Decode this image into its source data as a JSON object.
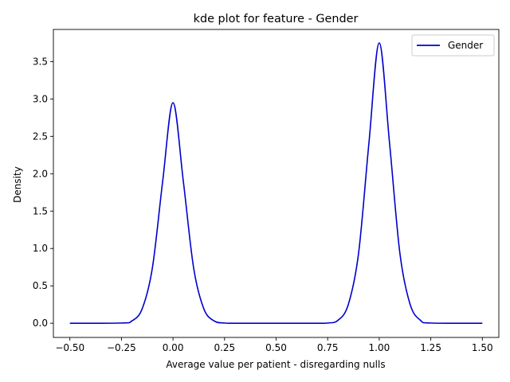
{
  "chart_data": {
    "type": "line",
    "title": "kde plot for feature -  Gender",
    "xlabel": "Average value per patient - disregarding nulls",
    "ylabel": "Density",
    "xlim": [
      -0.58,
      1.58
    ],
    "ylim": [
      -0.19,
      3.93
    ],
    "xticks": [
      -0.5,
      -0.25,
      0.0,
      0.25,
      0.5,
      0.75,
      1.0,
      1.25,
      1.5
    ],
    "xtick_labels": [
      "−0.50",
      "−0.25",
      "0.00",
      "0.25",
      "0.50",
      "0.75",
      "1.00",
      "1.25",
      "1.50"
    ],
    "yticks": [
      0.0,
      0.5,
      1.0,
      1.5,
      2.0,
      2.5,
      3.0,
      3.5
    ],
    "ytick_labels": [
      "0.0",
      "0.5",
      "1.0",
      "1.5",
      "2.0",
      "2.5",
      "3.0",
      "3.5"
    ],
    "grid": false,
    "legend_position": "top-right",
    "series": [
      {
        "name": "Gender",
        "color": "#0000cd",
        "x": [
          -0.5,
          -0.25,
          -0.2,
          -0.15,
          -0.1,
          -0.05,
          0.0,
          0.05,
          0.1,
          0.15,
          0.2,
          0.25,
          0.3,
          0.5,
          0.7,
          0.75,
          0.8,
          0.85,
          0.9,
          0.95,
          1.0,
          1.05,
          1.1,
          1.15,
          1.2,
          1.25,
          1.5
        ],
        "y": [
          0.0,
          0.003,
          0.03,
          0.19,
          0.74,
          1.9,
          2.95,
          1.9,
          0.74,
          0.19,
          0.03,
          0.003,
          0.0,
          0.0,
          0.0,
          0.003,
          0.039,
          0.25,
          0.94,
          2.41,
          3.75,
          2.41,
          0.94,
          0.25,
          0.039,
          0.003,
          0.0
        ]
      }
    ]
  }
}
